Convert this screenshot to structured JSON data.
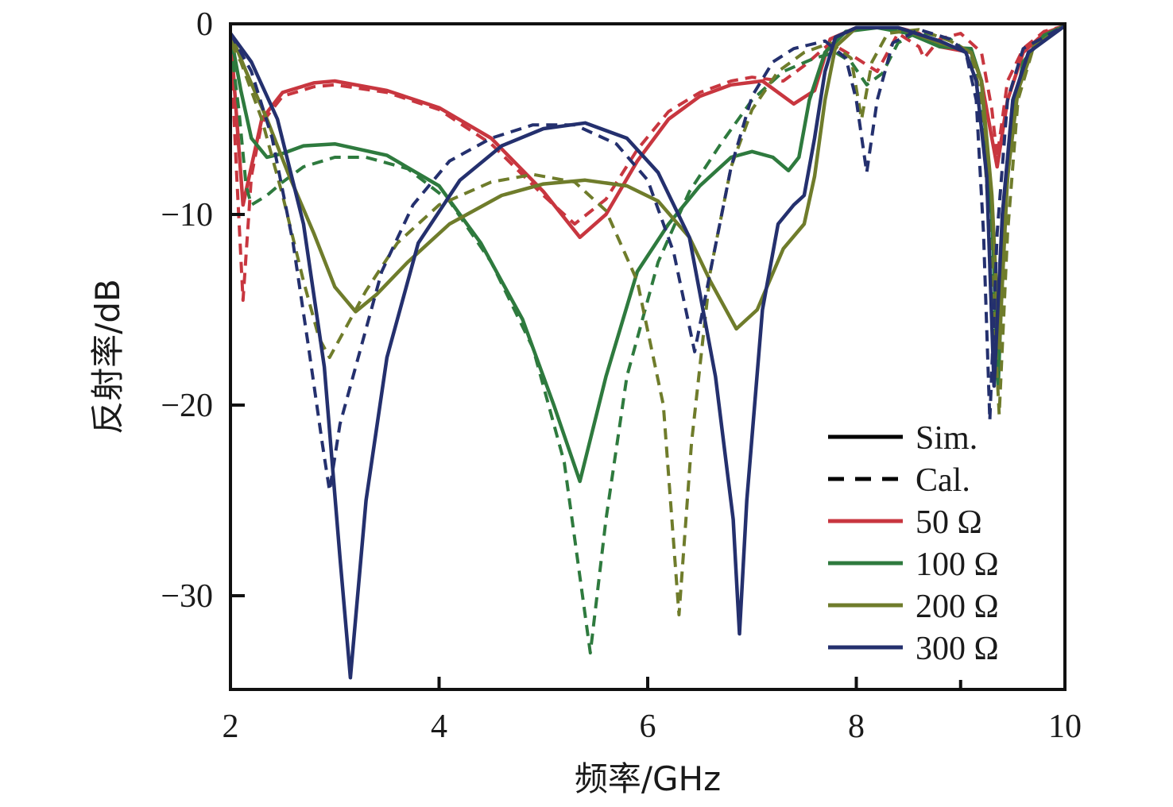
{
  "chart_data": {
    "type": "line",
    "xlabel": "频率/GHz",
    "ylabel": "反射率/dB",
    "xlim": [
      2,
      10
    ],
    "ylim": [
      -35,
      0
    ],
    "xticks": [
      2,
      4,
      6,
      8,
      10
    ],
    "yticks": [
      0,
      -10,
      -20,
      -30
    ],
    "xtick_labels": [
      "2",
      "4",
      "6",
      "8",
      "10"
    ],
    "ytick_labels": [
      "0",
      "−10",
      "−20",
      "−30"
    ],
    "grid": false,
    "legend_position": "bottom-right",
    "legend": [
      {
        "label": "Sim.",
        "style": "solid",
        "color": "#000000"
      },
      {
        "label": "Cal.",
        "style": "dashed",
        "color": "#000000"
      },
      {
        "label": "50 Ω",
        "style": "solid",
        "color": "#c8363f"
      },
      {
        "label": "100 Ω",
        "style": "solid",
        "color": "#2e7a3e"
      },
      {
        "label": "200 Ω",
        "style": "solid",
        "color": "#6f7c2b"
      },
      {
        "label": "300 Ω",
        "style": "solid",
        "color": "#24306e"
      }
    ],
    "series": [
      {
        "group": "50 Ω",
        "kind": "Sim.",
        "color": "#c8363f",
        "dash": false,
        "points": [
          [
            2,
            -0.5
          ],
          [
            2.06,
            -5
          ],
          [
            2.12,
            -9.5
          ],
          [
            2.18,
            -8
          ],
          [
            2.3,
            -5
          ],
          [
            2.5,
            -3.6
          ],
          [
            2.8,
            -3.1
          ],
          [
            3.0,
            -3.0
          ],
          [
            3.5,
            -3.5
          ],
          [
            4.0,
            -4.4
          ],
          [
            4.5,
            -6.0
          ],
          [
            5.0,
            -8.8
          ],
          [
            5.35,
            -11.2
          ],
          [
            5.6,
            -10.0
          ],
          [
            5.9,
            -7.2
          ],
          [
            6.2,
            -5.0
          ],
          [
            6.5,
            -3.8
          ],
          [
            6.8,
            -3.2
          ],
          [
            7.1,
            -3.0
          ],
          [
            7.4,
            -4.2
          ],
          [
            7.6,
            -3.5
          ],
          [
            7.75,
            -0.8
          ],
          [
            8.0,
            -0.2
          ],
          [
            8.4,
            -0.2
          ],
          [
            8.6,
            -0.5
          ],
          [
            8.8,
            -1.2
          ],
          [
            9.1,
            -1.5
          ],
          [
            9.2,
            -3
          ],
          [
            9.3,
            -6
          ],
          [
            9.35,
            -7.5
          ],
          [
            9.45,
            -4
          ],
          [
            9.6,
            -1.5
          ],
          [
            9.8,
            -0.5
          ],
          [
            10,
            -0.1
          ]
        ]
      },
      {
        "group": "50 Ω",
        "kind": "Cal.",
        "color": "#c8363f",
        "dash": true,
        "points": [
          [
            2,
            -1
          ],
          [
            2.06,
            -8
          ],
          [
            2.12,
            -14.5
          ],
          [
            2.2,
            -8
          ],
          [
            2.3,
            -5.2
          ],
          [
            2.5,
            -3.8
          ],
          [
            2.8,
            -3.3
          ],
          [
            3.0,
            -3.2
          ],
          [
            3.5,
            -3.6
          ],
          [
            4.0,
            -4.5
          ],
          [
            4.5,
            -6.3
          ],
          [
            5.0,
            -9.0
          ],
          [
            5.3,
            -10.5
          ],
          [
            5.6,
            -9.2
          ],
          [
            5.9,
            -6.6
          ],
          [
            6.2,
            -4.6
          ],
          [
            6.5,
            -3.6
          ],
          [
            6.8,
            -3.0
          ],
          [
            7.0,
            -2.8
          ],
          [
            7.3,
            -3.0
          ],
          [
            7.5,
            -2.2
          ],
          [
            7.75,
            -1.0
          ],
          [
            8.0,
            -1.8
          ],
          [
            8.2,
            -2.5
          ],
          [
            8.4,
            -0.5
          ],
          [
            8.6,
            -1.2
          ],
          [
            8.65,
            -1.8
          ],
          [
            8.8,
            -0.8
          ],
          [
            9.0,
            -0.5
          ],
          [
            9.2,
            -1.5
          ],
          [
            9.3,
            -4.5
          ],
          [
            9.35,
            -7.0
          ],
          [
            9.45,
            -3
          ],
          [
            9.6,
            -1.3
          ],
          [
            9.8,
            -0.4
          ],
          [
            10,
            -0.1
          ]
        ]
      },
      {
        "group": "100 Ω",
        "kind": "Sim.",
        "color": "#2e7a3e",
        "dash": false,
        "points": [
          [
            2,
            -0.5
          ],
          [
            2.1,
            -3.5
          ],
          [
            2.2,
            -6
          ],
          [
            2.35,
            -7.0
          ],
          [
            2.5,
            -6.8
          ],
          [
            2.7,
            -6.4
          ],
          [
            3.0,
            -6.3
          ],
          [
            3.5,
            -6.9
          ],
          [
            4.0,
            -8.5
          ],
          [
            4.4,
            -11.5
          ],
          [
            4.8,
            -15.5
          ],
          [
            5.1,
            -20
          ],
          [
            5.35,
            -24
          ],
          [
            5.6,
            -18.5
          ],
          [
            5.9,
            -13
          ],
          [
            6.2,
            -10.5
          ],
          [
            6.5,
            -8.5
          ],
          [
            6.8,
            -7.0
          ],
          [
            7.0,
            -6.7
          ],
          [
            7.2,
            -7.0
          ],
          [
            7.35,
            -7.7
          ],
          [
            7.45,
            -7.0
          ],
          [
            7.55,
            -4
          ],
          [
            7.7,
            -1.5
          ],
          [
            7.9,
            -0.4
          ],
          [
            8.2,
            -0.2
          ],
          [
            8.5,
            -0.5
          ],
          [
            8.8,
            -1.2
          ],
          [
            9.1,
            -1.3
          ],
          [
            9.2,
            -3
          ],
          [
            9.3,
            -10
          ],
          [
            9.36,
            -19
          ],
          [
            9.42,
            -10
          ],
          [
            9.5,
            -5
          ],
          [
            9.6,
            -2
          ],
          [
            9.8,
            -0.6
          ],
          [
            10,
            -0.1
          ]
        ]
      },
      {
        "group": "100 Ω",
        "kind": "Cal.",
        "color": "#2e7a3e",
        "dash": true,
        "points": [
          [
            2,
            -1
          ],
          [
            2.08,
            -4.5
          ],
          [
            2.15,
            -8.5
          ],
          [
            2.2,
            -9.5
          ],
          [
            2.35,
            -9.0
          ],
          [
            2.5,
            -8.3
          ],
          [
            2.7,
            -7.5
          ],
          [
            3.0,
            -7.0
          ],
          [
            3.3,
            -7.0
          ],
          [
            3.7,
            -7.6
          ],
          [
            4.1,
            -9.3
          ],
          [
            4.5,
            -12.5
          ],
          [
            4.9,
            -17
          ],
          [
            5.2,
            -23
          ],
          [
            5.45,
            -33
          ],
          [
            5.6,
            -26
          ],
          [
            5.8,
            -18.5
          ],
          [
            6.1,
            -12.5
          ],
          [
            6.4,
            -8.8
          ],
          [
            6.7,
            -6.3
          ],
          [
            7.0,
            -4.0
          ],
          [
            7.3,
            -2.5
          ],
          [
            7.6,
            -1.8
          ],
          [
            7.8,
            -1.5
          ],
          [
            7.95,
            -2.0
          ],
          [
            8.1,
            -3.2
          ],
          [
            8.25,
            -2.6
          ],
          [
            8.4,
            -1.0
          ],
          [
            8.6,
            -0.4
          ],
          [
            8.9,
            -0.8
          ],
          [
            9.1,
            -1.6
          ],
          [
            9.2,
            -4
          ],
          [
            9.28,
            -10
          ],
          [
            9.33,
            -18.5
          ],
          [
            9.4,
            -10
          ],
          [
            9.5,
            -4
          ],
          [
            9.7,
            -1.0
          ],
          [
            10,
            -0.1
          ]
        ]
      },
      {
        "group": "200 Ω",
        "kind": "Sim.",
        "color": "#6f7c2b",
        "dash": false,
        "points": [
          [
            2,
            -0.5
          ],
          [
            2.15,
            -2.5
          ],
          [
            2.35,
            -5
          ],
          [
            2.55,
            -7.8
          ],
          [
            2.8,
            -11
          ],
          [
            3.0,
            -13.8
          ],
          [
            3.2,
            -15.1
          ],
          [
            3.4,
            -14.2
          ],
          [
            3.7,
            -12.5
          ],
          [
            4.1,
            -10.5
          ],
          [
            4.6,
            -9.0
          ],
          [
            5.0,
            -8.4
          ],
          [
            5.4,
            -8.2
          ],
          [
            5.8,
            -8.5
          ],
          [
            6.1,
            -9.3
          ],
          [
            6.4,
            -11.2
          ],
          [
            6.6,
            -13.5
          ],
          [
            6.85,
            -16.0
          ],
          [
            7.05,
            -15.0
          ],
          [
            7.3,
            -11.8
          ],
          [
            7.5,
            -10.5
          ],
          [
            7.6,
            -8
          ],
          [
            7.7,
            -4
          ],
          [
            7.8,
            -1.2
          ],
          [
            8.0,
            -0.2
          ],
          [
            8.4,
            -0.2
          ],
          [
            8.8,
            -1.0
          ],
          [
            9.1,
            -1.5
          ],
          [
            9.2,
            -3
          ],
          [
            9.3,
            -9
          ],
          [
            9.37,
            -17
          ],
          [
            9.45,
            -8
          ],
          [
            9.55,
            -3.5
          ],
          [
            9.7,
            -1.2
          ],
          [
            10,
            -0.1
          ]
        ]
      },
      {
        "group": "200 Ω",
        "kind": "Cal.",
        "color": "#6f7c2b",
        "dash": true,
        "points": [
          [
            2,
            -1
          ],
          [
            2.1,
            -2
          ],
          [
            2.3,
            -5
          ],
          [
            2.5,
            -9
          ],
          [
            2.7,
            -13.5
          ],
          [
            2.85,
            -16.5
          ],
          [
            2.95,
            -17.5
          ],
          [
            3.1,
            -16
          ],
          [
            3.3,
            -14
          ],
          [
            3.6,
            -11.5
          ],
          [
            4.0,
            -9.5
          ],
          [
            4.5,
            -8.3
          ],
          [
            4.9,
            -7.9
          ],
          [
            5.3,
            -8.3
          ],
          [
            5.6,
            -9.8
          ],
          [
            5.9,
            -13.5
          ],
          [
            6.15,
            -20
          ],
          [
            6.3,
            -31
          ],
          [
            6.42,
            -22
          ],
          [
            6.6,
            -13
          ],
          [
            6.8,
            -7.5
          ],
          [
            7.0,
            -4.5
          ],
          [
            7.25,
            -2.5
          ],
          [
            7.5,
            -1.5
          ],
          [
            7.75,
            -1.0
          ],
          [
            7.95,
            -1.8
          ],
          [
            8.05,
            -5.0
          ],
          [
            8.15,
            -2.0
          ],
          [
            8.3,
            -0.5
          ],
          [
            8.6,
            -0.3
          ],
          [
            8.9,
            -0.9
          ],
          [
            9.1,
            -1.5
          ],
          [
            9.2,
            -4
          ],
          [
            9.3,
            -13
          ],
          [
            9.37,
            -20.5
          ],
          [
            9.45,
            -11
          ],
          [
            9.55,
            -4
          ],
          [
            9.7,
            -1.2
          ],
          [
            10,
            -0.1
          ]
        ]
      },
      {
        "group": "300 Ω",
        "kind": "Sim.",
        "color": "#24306e",
        "dash": false,
        "points": [
          [
            2,
            -0.5
          ],
          [
            2.2,
            -2
          ],
          [
            2.45,
            -5
          ],
          [
            2.7,
            -10.5
          ],
          [
            2.9,
            -18
          ],
          [
            3.05,
            -28
          ],
          [
            3.15,
            -34.3
          ],
          [
            3.3,
            -25
          ],
          [
            3.5,
            -17.5
          ],
          [
            3.8,
            -11.5
          ],
          [
            4.2,
            -8.2
          ],
          [
            4.6,
            -6.4
          ],
          [
            5.0,
            -5.5
          ],
          [
            5.4,
            -5.2
          ],
          [
            5.8,
            -6.0
          ],
          [
            6.1,
            -7.8
          ],
          [
            6.4,
            -11.2
          ],
          [
            6.65,
            -18.5
          ],
          [
            6.82,
            -26
          ],
          [
            6.88,
            -32
          ],
          [
            6.95,
            -25
          ],
          [
            7.1,
            -15
          ],
          [
            7.25,
            -10.5
          ],
          [
            7.4,
            -9.5
          ],
          [
            7.5,
            -9.0
          ],
          [
            7.6,
            -6
          ],
          [
            7.7,
            -2.5
          ],
          [
            7.8,
            -0.7
          ],
          [
            8.0,
            -0.2
          ],
          [
            8.4,
            -0.2
          ],
          [
            8.8,
            -0.9
          ],
          [
            9.05,
            -1.5
          ],
          [
            9.15,
            -3
          ],
          [
            9.25,
            -8
          ],
          [
            9.32,
            -19
          ],
          [
            9.4,
            -10
          ],
          [
            9.5,
            -4
          ],
          [
            9.65,
            -1.5
          ],
          [
            10,
            -0.1
          ]
        ]
      },
      {
        "group": "300 Ω",
        "kind": "Cal.",
        "color": "#24306e",
        "dash": true,
        "points": [
          [
            2,
            -0.5
          ],
          [
            2.2,
            -2.5
          ],
          [
            2.4,
            -6
          ],
          [
            2.6,
            -11.5
          ],
          [
            2.75,
            -17
          ],
          [
            2.88,
            -22
          ],
          [
            2.95,
            -24.5
          ],
          [
            3.05,
            -21
          ],
          [
            3.2,
            -18
          ],
          [
            3.45,
            -13
          ],
          [
            3.75,
            -9.5
          ],
          [
            4.1,
            -7.2
          ],
          [
            4.5,
            -6.0
          ],
          [
            4.9,
            -5.3
          ],
          [
            5.3,
            -5.3
          ],
          [
            5.7,
            -6.3
          ],
          [
            6.0,
            -8.2
          ],
          [
            6.25,
            -12
          ],
          [
            6.45,
            -17.2
          ],
          [
            6.6,
            -13
          ],
          [
            6.8,
            -7.5
          ],
          [
            7.0,
            -3.8
          ],
          [
            7.2,
            -2.0
          ],
          [
            7.4,
            -1.3
          ],
          [
            7.7,
            -0.9
          ],
          [
            7.9,
            -1.8
          ],
          [
            8.0,
            -4.0
          ],
          [
            8.1,
            -7.8
          ],
          [
            8.2,
            -4
          ],
          [
            8.35,
            -1
          ],
          [
            8.6,
            -0.3
          ],
          [
            8.9,
            -0.8
          ],
          [
            9.05,
            -1.5
          ],
          [
            9.15,
            -4
          ],
          [
            9.22,
            -11
          ],
          [
            9.28,
            -20.8
          ],
          [
            9.35,
            -11
          ],
          [
            9.45,
            -4
          ],
          [
            9.6,
            -1.3
          ],
          [
            10,
            -0.1
          ]
        ]
      }
    ]
  }
}
